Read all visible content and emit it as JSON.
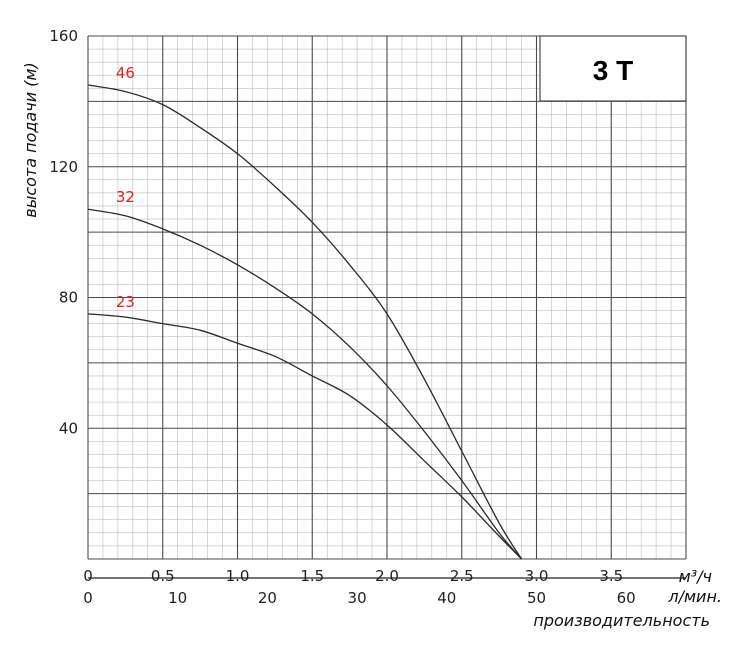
{
  "chart_data": {
    "type": "line",
    "title": "3 T",
    "ylabel": "высота подачи (м)",
    "xlabel": "производительность",
    "x_unit_primary": "м³/ч",
    "x_unit_secondary": "л/мин.",
    "xlim": [
      0,
      4.0
    ],
    "ylim": [
      0,
      160
    ],
    "x_ticks": [
      "0",
      "0.5",
      "1.0",
      "1.5",
      "2.0",
      "2.5",
      "3.0",
      "3.5"
    ],
    "x_ticks_secondary": [
      "0",
      "10",
      "20",
      "30",
      "40",
      "50",
      "60"
    ],
    "y_ticks": [
      "40",
      "80",
      "120",
      "160"
    ],
    "grid": true,
    "series": [
      {
        "name": "46",
        "x": [
          0,
          0.25,
          0.5,
          0.75,
          1.0,
          1.25,
          1.5,
          1.75,
          2.0,
          2.25,
          2.5,
          2.75,
          2.9
        ],
        "y": [
          145,
          143,
          139,
          132,
          124,
          114,
          103,
          90,
          75,
          55,
          33,
          11,
          0
        ]
      },
      {
        "name": "32",
        "x": [
          0,
          0.25,
          0.5,
          0.75,
          1.0,
          1.25,
          1.5,
          1.75,
          2.0,
          2.25,
          2.5,
          2.75,
          2.9
        ],
        "y": [
          107,
          105,
          101,
          96,
          90,
          83,
          75,
          65,
          53,
          39,
          24,
          8,
          0
        ]
      },
      {
        "name": "23",
        "x": [
          0,
          0.25,
          0.5,
          0.75,
          1.0,
          1.25,
          1.5,
          1.75,
          2.0,
          2.25,
          2.5,
          2.75,
          2.9
        ],
        "y": [
          75,
          74,
          72,
          70,
          66,
          62,
          56,
          50,
          41,
          30,
          19,
          7,
          0
        ]
      }
    ]
  },
  "colors": {
    "grid_major": "#4a4a4a",
    "grid_minor": "#b0b0b0",
    "curve": "#2a2a2a",
    "curve_label": "#e0201e"
  }
}
